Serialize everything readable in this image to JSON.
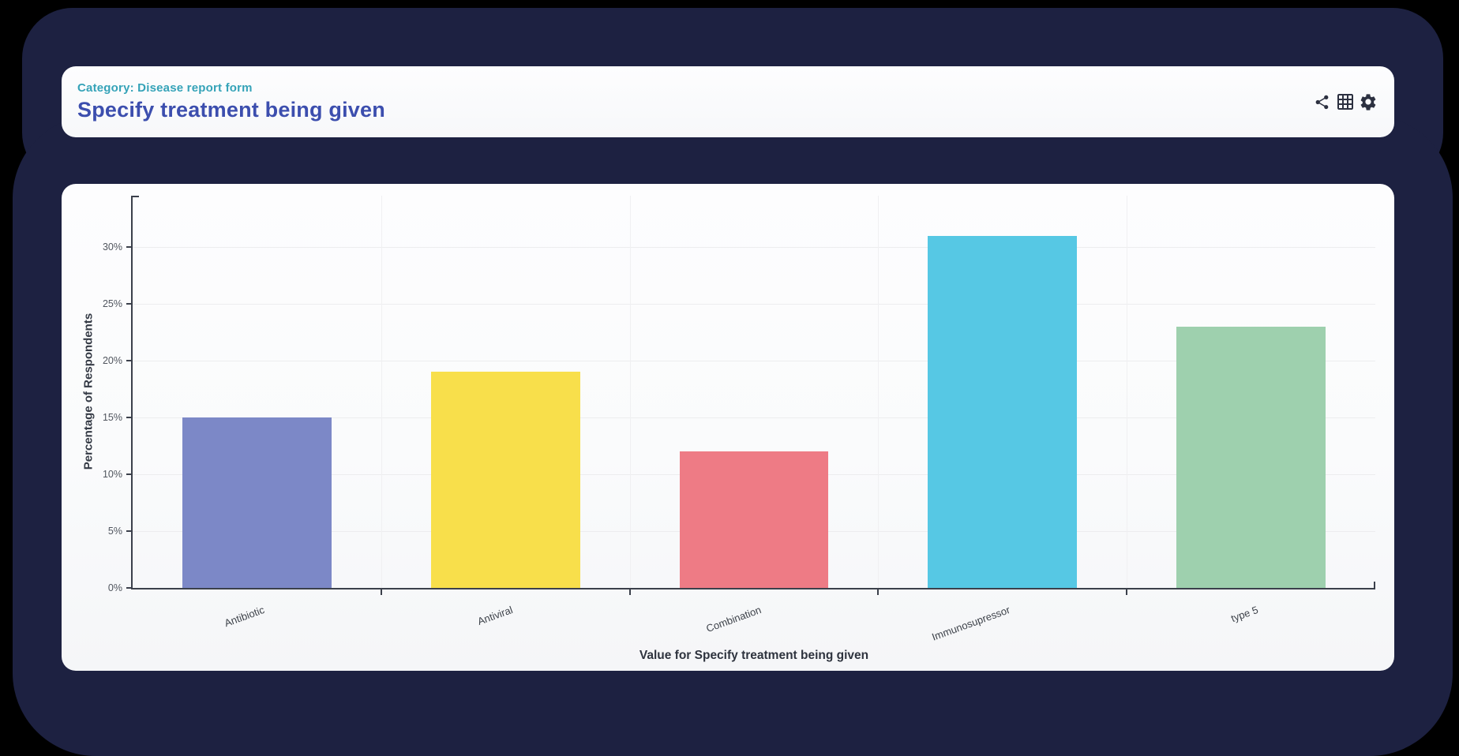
{
  "page": {
    "background_color": "#000000",
    "shell_color": "#1d2141",
    "card_color": "#fbfcfd"
  },
  "header": {
    "category_label": "Category: Disease report form",
    "category_color": "#35a3b8",
    "title": "Specify treatment being given",
    "title_color": "#3c4eae",
    "icons": [
      "share-icon",
      "table-icon",
      "settings-icon"
    ],
    "icon_color": "#2c3040"
  },
  "chart_data": {
    "type": "bar",
    "categories": [
      "Antibiotic",
      "Antiviral",
      "Combination",
      "Immunosupressor",
      "type 5"
    ],
    "values": [
      15,
      19,
      12,
      31,
      23
    ],
    "unit": "%",
    "bar_colors": [
      "#7c88c7",
      "#f8df4b",
      "#ee7b85",
      "#56c8e4",
      "#9ed0ae"
    ],
    "xlabel": "Value for Specify treatment being given",
    "ylabel": "Percentage of Respondents",
    "yticks": [
      "0%",
      "5%",
      "10%",
      "15%",
      "20%",
      "25%",
      "30%"
    ],
    "ylim": [
      0,
      34
    ],
    "ytick_step": 5,
    "grid": true,
    "legend_position": "none",
    "xtick_rotation_deg": -20,
    "axis_color": "#3b404b",
    "gridline_color": "#ededef"
  }
}
